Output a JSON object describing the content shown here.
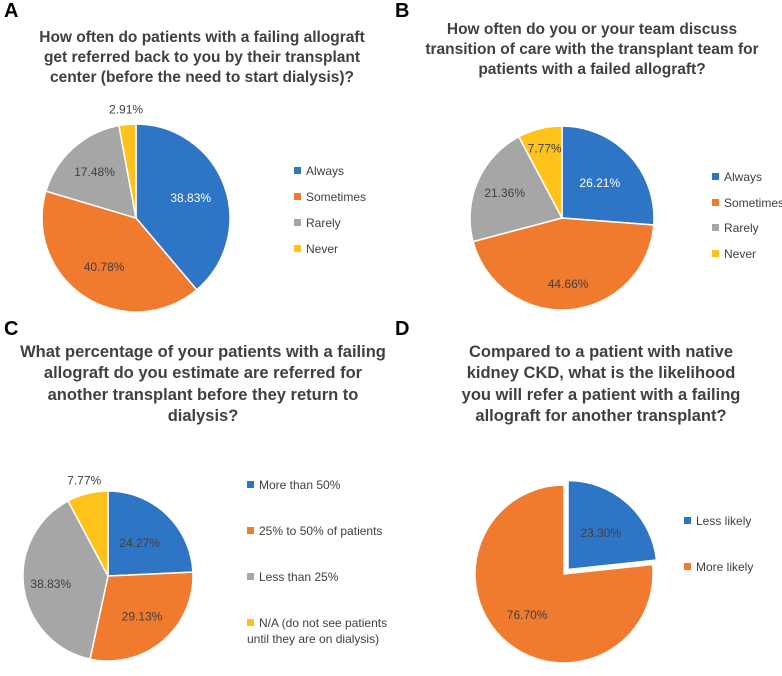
{
  "colors": {
    "always": "#2E75C6",
    "sometimes": "#F07A2E",
    "rarely": "#A6A6A6",
    "never": "#FFC21A"
  },
  "chart_data": [
    {
      "panel": "A",
      "type": "pie",
      "title": "How often do patients with a failing allograft get referred back to you by their transplant center (before the need to start dialysis)?",
      "legend_position": "right",
      "categories": [
        "Always",
        "Sometimes",
        "Rarely",
        "Never"
      ],
      "values": [
        38.83,
        40.78,
        17.48,
        2.91
      ],
      "labels": [
        "38.83%",
        "40.78%",
        "17.48%",
        "2.91%"
      ],
      "colors": [
        "#2E75C6",
        "#F07A2E",
        "#A6A6A6",
        "#FFC21A"
      ]
    },
    {
      "panel": "B",
      "type": "pie",
      "title": "How often do you or your team discuss transition of care with the transplant team for patients with a failed allograft?",
      "legend_position": "right",
      "categories": [
        "Always",
        "Sometimes",
        "Rarely",
        "Never"
      ],
      "values": [
        26.21,
        44.66,
        21.36,
        7.77
      ],
      "labels": [
        "26.21%",
        "44.66%",
        "21.36%",
        "7.77%"
      ],
      "colors": [
        "#2E75C6",
        "#F07A2E",
        "#A6A6A6",
        "#FFC21A"
      ]
    },
    {
      "panel": "C",
      "type": "pie",
      "title": "What percentage of your patients with a failing allograft do you estimate are referred for another transplant before they return to dialysis?",
      "legend_position": "right",
      "categories": [
        "More than 50%",
        "25% to 50% of patients",
        "Less than 25%",
        "N/A (do not see patients until they are on dialysis)"
      ],
      "values": [
        24.27,
        29.13,
        38.83,
        7.77
      ],
      "labels": [
        "24.27%",
        "29.13%",
        "38.83%",
        "7.77%"
      ],
      "colors": [
        "#2E75C6",
        "#F07A2E",
        "#A6A6A6",
        "#FFC21A"
      ]
    },
    {
      "panel": "D",
      "type": "pie",
      "title": "Compared to a patient with native kidney CKD, what is the likelihood you will refer a patient with a failing allograft for another transplant?",
      "legend_position": "right",
      "categories": [
        "Less likely",
        "More likely"
      ],
      "values": [
        23.3,
        76.7
      ],
      "labels": [
        "23.30%",
        "76.70%"
      ],
      "colors": [
        "#2E75C6",
        "#F07A2E"
      ],
      "exploded": [
        0
      ]
    }
  ]
}
